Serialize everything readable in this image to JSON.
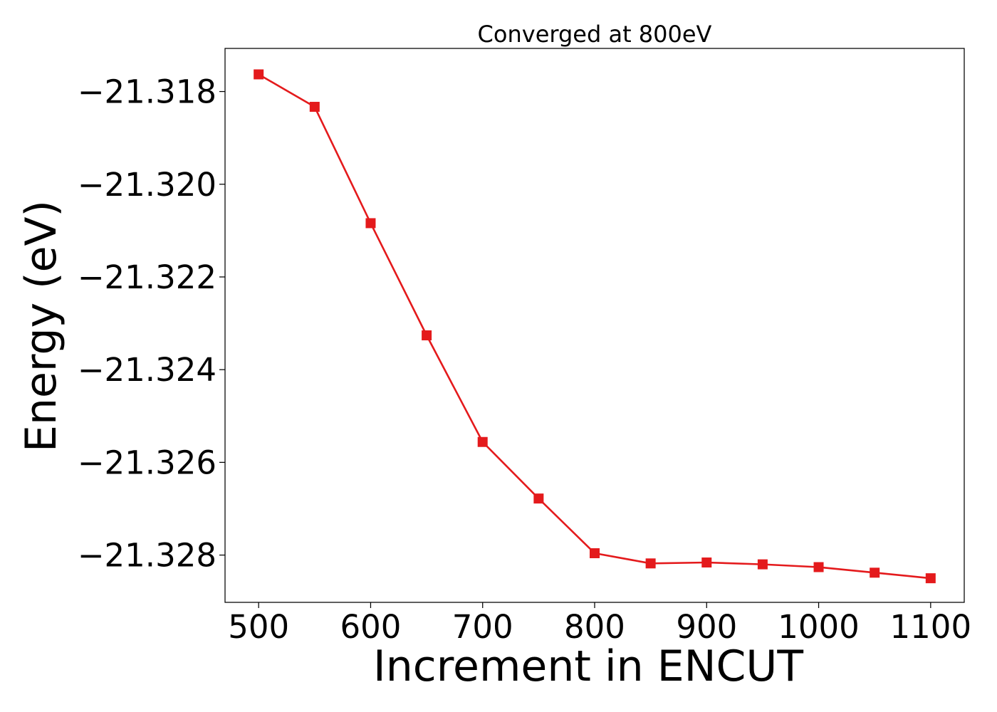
{
  "chart_data": {
    "type": "line",
    "title": "Converged at 800eV",
    "xlabel": "Increment in ENCUT",
    "ylabel": "Energy (eV)",
    "x": [
      500,
      550,
      600,
      650,
      700,
      750,
      800,
      850,
      900,
      950,
      1000,
      1050,
      1100
    ],
    "series": [
      {
        "color": "#e41a1c",
        "marker": "square",
        "values": [
          -21.31763,
          -21.31833,
          -21.32084,
          -21.32326,
          -21.32556,
          -21.32678,
          -21.32796,
          -21.32818,
          -21.32816,
          -21.3282,
          -21.32826,
          -21.32838,
          -21.3285
        ]
      }
    ],
    "xticks": [
      500,
      600,
      700,
      800,
      900,
      1000,
      1100
    ],
    "xtick_labels": [
      "500",
      "600",
      "700",
      "800",
      "900",
      "1000",
      "1100"
    ],
    "yticks": [
      -21.318,
      -21.32,
      -21.322,
      -21.324,
      -21.326,
      -21.328
    ],
    "ytick_labels": [
      "−21.318",
      "−21.320",
      "−21.322",
      "−21.324",
      "−21.326",
      "−21.328"
    ],
    "xlim": [
      470,
      1130
    ],
    "ylim": [
      -21.32902,
      -21.31707
    ],
    "grid": false,
    "legend": "none"
  }
}
